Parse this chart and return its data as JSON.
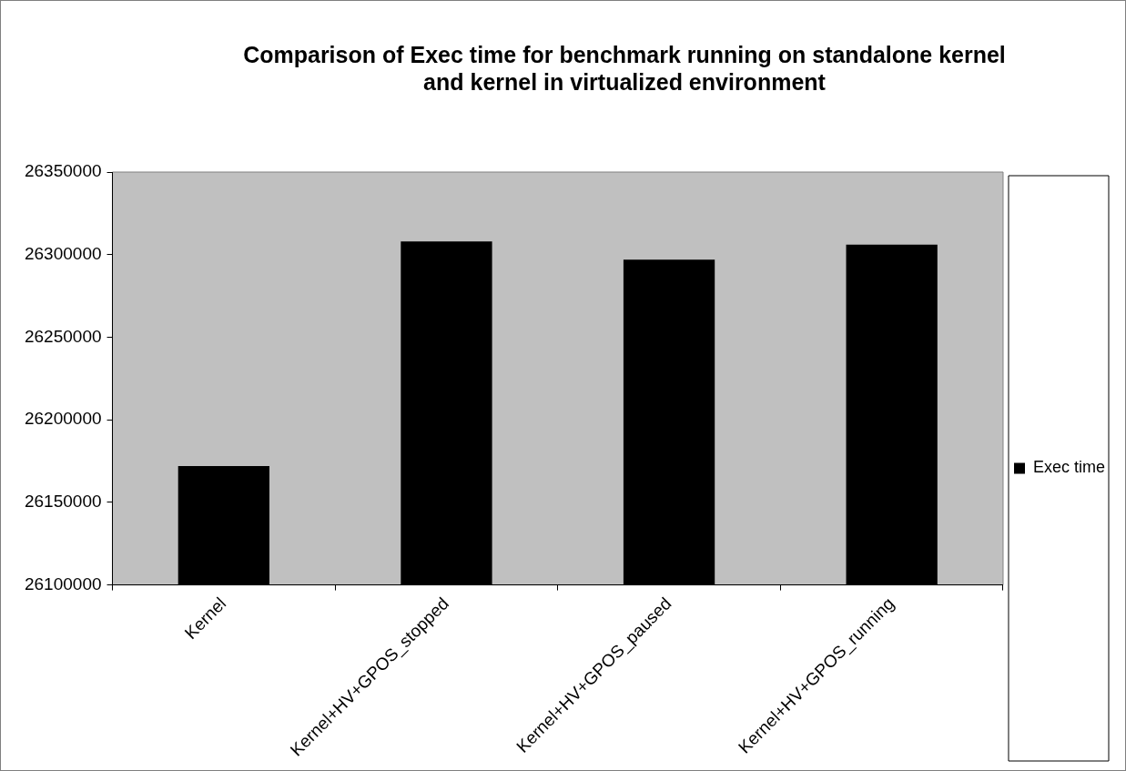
{
  "chart_data": {
    "type": "bar",
    "title": "Comparison of Exec time for benchmark running on standalone kernel and kernel in virtualized environment",
    "categories": [
      "Kernel",
      "Kernel+HV+GPOS_stopped",
      "Kernel+HV+GPOS_paused",
      "Kernel+HV+GPOS_running"
    ],
    "series": [
      {
        "name": "Exec time",
        "color": "#000000",
        "values": [
          26172000,
          26308000,
          26297000,
          26306000
        ]
      }
    ],
    "ylim": [
      26100000,
      26350000
    ],
    "yticks": [
      26100000,
      26150000,
      26200000,
      26250000,
      26300000,
      26350000
    ],
    "legend": "right"
  }
}
